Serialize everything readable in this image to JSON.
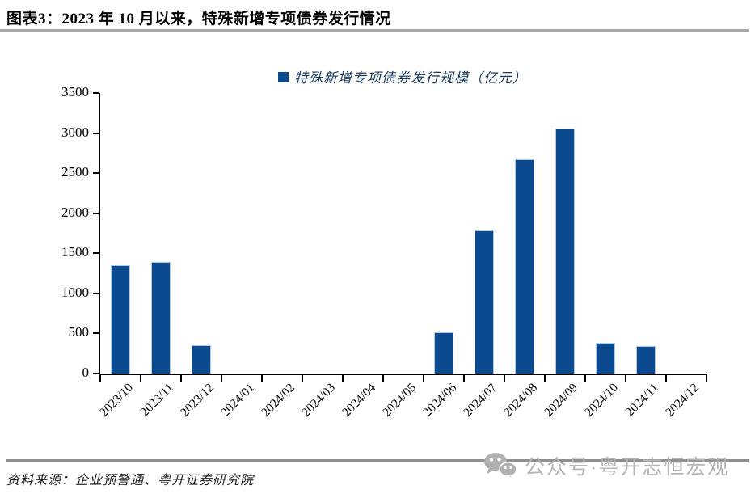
{
  "header": {
    "title": "图表3：2023 年 10 月以来，特殊新增专项债券发行情况"
  },
  "chart_data": {
    "type": "bar",
    "title": "图表3：2023 年 10 月以来，特殊新增专项债券发行情况",
    "legend_label": "特殊新增专项债券发行规模（亿元）",
    "legend_position": "top-center",
    "categories": [
      "2023/10",
      "2023/11",
      "2023/12",
      "2024/01",
      "2024/02",
      "2024/03",
      "2024/04",
      "2024/05",
      "2024/06",
      "2024/07",
      "2024/08",
      "2024/09",
      "2024/10",
      "2024/11",
      "2024/12"
    ],
    "values": [
      1350,
      1390,
      355,
      0,
      0,
      0,
      0,
      0,
      515,
      1785,
      2670,
      3055,
      385,
      345,
      0
    ],
    "xlabel": "",
    "ylabel": "",
    "ylim": [
      0,
      3500
    ],
    "yticks": [
      0,
      500,
      1000,
      1500,
      2000,
      2500,
      3000,
      3500
    ],
    "grid": false,
    "bar_color": "#0B4A8F",
    "bar_border_color": "#AFC7E8",
    "axis_color": "#000000"
  },
  "footer": {
    "source": "资料来源：企业预警通、粤开证券研究院"
  },
  "watermark": {
    "icon": "wechat-icon",
    "text": "公众号·粤开志恒宏观",
    "color": "#B5B5B5"
  },
  "colors": {
    "title_rule": "#A6A6A6",
    "footer_rule": "#8F8F8F",
    "legend_text": "#17375E"
  }
}
